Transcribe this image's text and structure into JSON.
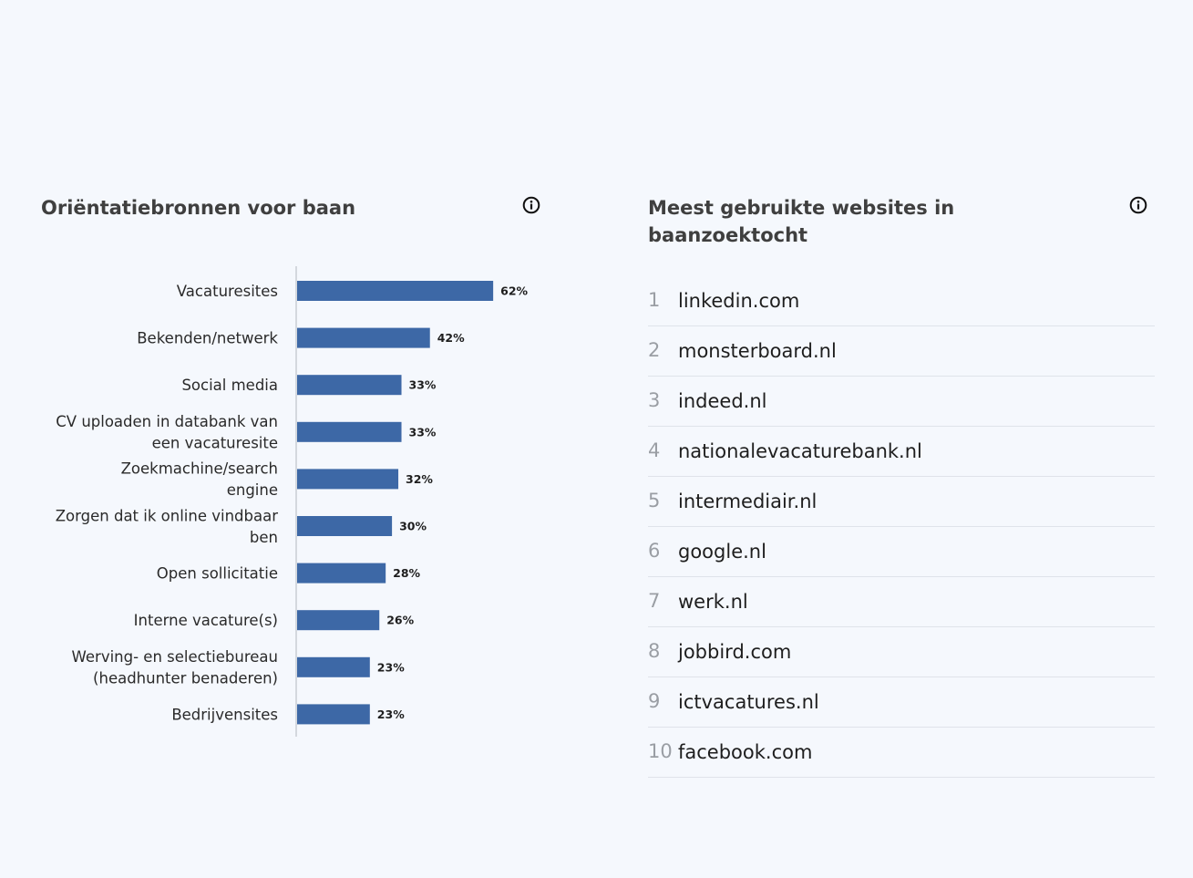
{
  "left_card": {
    "title": "Oriëntatiebronnen voor baan",
    "info_icon": "info-circle-icon"
  },
  "right_card": {
    "title": "Meest gebruikte websites in baanzoektocht",
    "info_icon": "info-circle-icon",
    "sites": [
      {
        "rank": "1",
        "name": "linkedin.com"
      },
      {
        "rank": "2",
        "name": "monsterboard.nl"
      },
      {
        "rank": "3",
        "name": "indeed.nl"
      },
      {
        "rank": "4",
        "name": "nationalevacaturebank.nl"
      },
      {
        "rank": "5",
        "name": "intermediair.nl"
      },
      {
        "rank": "6",
        "name": "google.nl"
      },
      {
        "rank": "7",
        "name": "werk.nl"
      },
      {
        "rank": "8",
        "name": "jobbird.com"
      },
      {
        "rank": "9",
        "name": "ictvacatures.nl"
      },
      {
        "rank": "10",
        "name": "facebook.com"
      }
    ]
  },
  "chart_data": {
    "type": "bar",
    "orientation": "horizontal",
    "title": "Oriëntatiebronnen voor baan",
    "categories": [
      [
        "Vacaturesites"
      ],
      [
        "Bekenden/netwerk"
      ],
      [
        "Social media"
      ],
      [
        "CV uploaden in databank van",
        "een vacaturesite"
      ],
      [
        "Zoekmachine/search",
        "engine"
      ],
      [
        "Zorgen dat ik online vindbaar",
        "ben"
      ],
      [
        "Open sollicitatie"
      ],
      [
        "Interne vacature(s)"
      ],
      [
        "Werving- en selectiebureau",
        "(headhunter benaderen)"
      ],
      [
        "Bedrijvensites"
      ]
    ],
    "values": [
      62,
      42,
      33,
      33,
      32,
      30,
      28,
      26,
      23,
      23
    ],
    "value_labels": [
      "62%",
      "42%",
      "33%",
      "33%",
      "32%",
      "30%",
      "28%",
      "26%",
      "23%",
      "23%"
    ],
    "unit": "%",
    "xlim": [
      0,
      100
    ],
    "grid": false,
    "bar_color": "#3d68a6"
  }
}
